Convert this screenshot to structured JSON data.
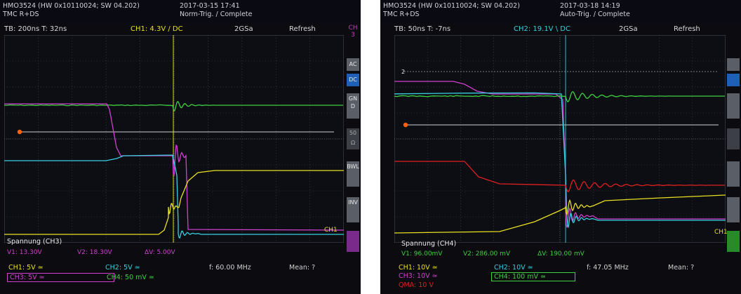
{
  "left": {
    "header": {
      "model": "HMO3524 (HW 0x10110024; SW 04.202)",
      "tmc": "TMC R+DS",
      "date": "2017-03-15 17:41",
      "mode": "Norm-Trig. / Complete"
    },
    "topbar": {
      "tb": "TB: 200ns  T: 32ns",
      "trigger": "CH1: 4.3V / DC",
      "rate": "2GSa",
      "refresh": "Refresh"
    },
    "side": {
      "ch3_l1": "CH",
      "ch3_l2": "3",
      "ac": "AC",
      "dc": "DC",
      "gnd": "GND",
      "v50": "50",
      "ohm": "Ω",
      "bwl": "BWL",
      "inv": "INV"
    },
    "channel_marker": "CH1",
    "measure": {
      "title": "Spannung (CH3)",
      "v1": "V1: 13.30V",
      "v2": "V2: 18.30V",
      "dv": "ΔV: 5.00V"
    },
    "footer": {
      "ch1": "CH1: 5V ≃",
      "ch2": "CH2: 5V ≃",
      "ch3": "CH3: 5V ≃",
      "ch4": "CH4: 50 mV ≃",
      "freq": "f: 60.00 MHz",
      "mean": "Mean: ?"
    }
  },
  "right": {
    "header": {
      "model": "HMO3524 (HW 0x10110024; SW 04.202)",
      "tmc": "TMC R+DS",
      "date": "2017-03-18 14:19",
      "mode": "Auto-Trig. / Complete"
    },
    "topbar": {
      "tb": "TB: 50ns  T: -7ns",
      "trigger": "CH2: 19.1V \\ DC",
      "rate": "2GSa",
      "refresh": "Refresh"
    },
    "channel_marker": "CH1",
    "marker2": "2",
    "measure": {
      "title": "Spannung (CH4)",
      "v1": "V1: 96.00mV",
      "v2": "V2: 286.00 mV",
      "dv": "ΔV: 190.00 mV"
    },
    "footer": {
      "ch1": "CH1: 10V ≃",
      "ch2": "CH2: 10V ≃",
      "ch3": "CH3: 10V ≃",
      "ch4": "CH4: 100 mV ≃",
      "math": "QMA: 10 V",
      "freq": "f: 47.05 MHz",
      "mean": "Mean: ?"
    }
  },
  "colors": {
    "ch1": "#e8e020",
    "ch2": "#38d0e0",
    "ch3": "#d040d0",
    "ch4": "#40d040",
    "math": "#e02020",
    "grid": "#4a4f5a",
    "trigger_marker": "#ff6010"
  }
}
